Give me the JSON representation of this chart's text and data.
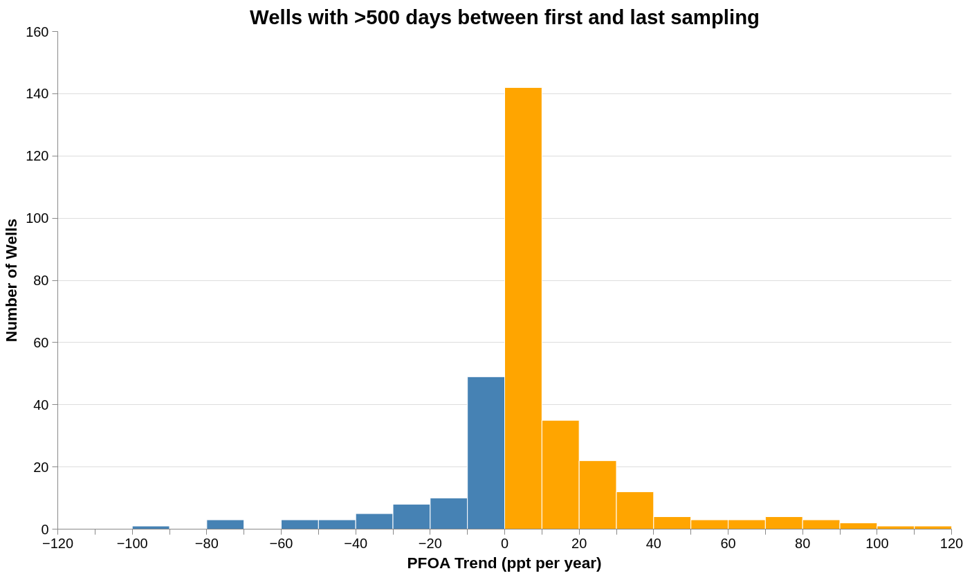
{
  "chart_data": {
    "type": "histogram",
    "title": "Wells with >500 days between first and last sampling",
    "xlabel": "PFOA Trend (ppt per year)",
    "ylabel": "Number of Wells",
    "bins": [
      -120,
      -110,
      -100,
      -90,
      -80,
      -70,
      -60,
      -50,
      -40,
      -30,
      -20,
      -10,
      0,
      10,
      20,
      30,
      40,
      50,
      60,
      70,
      80,
      90,
      100,
      110,
      120
    ],
    "values": [
      0,
      0,
      1,
      0,
      3,
      0,
      3,
      3,
      5,
      8,
      10,
      49,
      142,
      35,
      22,
      12,
      4,
      3,
      3,
      4,
      3,
      2,
      1,
      1
    ],
    "colors": [
      "#4682b4",
      "#4682b4",
      "#4682b4",
      "#4682b4",
      "#4682b4",
      "#4682b4",
      "#4682b4",
      "#4682b4",
      "#4682b4",
      "#4682b4",
      "#4682b4",
      "#4682b4",
      "#ffa500",
      "#ffa500",
      "#ffa500",
      "#ffa500",
      "#ffa500",
      "#ffa500",
      "#ffa500",
      "#ffa500",
      "#ffa500",
      "#ffa500",
      "#ffa500",
      "#ffa500"
    ],
    "xlim": [
      -120,
      120
    ],
    "ylim": [
      0,
      160
    ],
    "xticks": [
      -120,
      {
        "value": -110,
        "label": null
      },
      -100,
      {
        "value": -90,
        "label": null
      },
      -80,
      {
        "value": -70,
        "label": null
      },
      -60,
      {
        "value": -50,
        "label": null
      },
      -40,
      {
        "value": -30,
        "label": null
      },
      -20,
      {
        "value": -10,
        "label": null
      },
      0,
      {
        "value": 10,
        "label": null
      },
      20,
      {
        "value": 30,
        "label": null
      },
      40,
      {
        "value": 50,
        "label": null
      },
      60,
      {
        "value": 70,
        "label": null
      },
      80,
      {
        "value": 90,
        "label": null
      },
      100,
      {
        "value": 110,
        "label": null
      },
      120
    ],
    "yticks": [
      0,
      20,
      40,
      60,
      80,
      100,
      120,
      140,
      160
    ],
    "grid": "y"
  }
}
